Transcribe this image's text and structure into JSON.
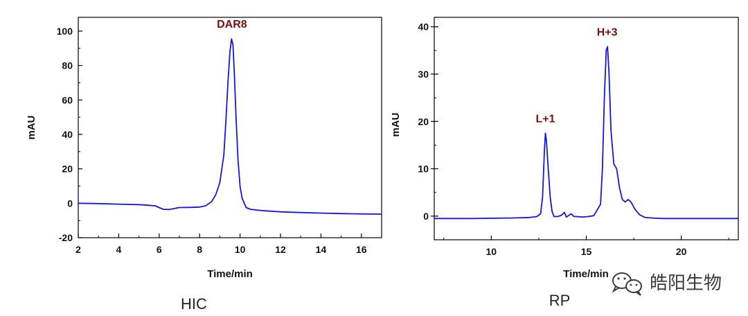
{
  "page": {
    "background": "#ffffff"
  },
  "watermark": {
    "text": "皓阳生物",
    "icon": "wechat-chat-icon",
    "color": "#3a3a3a"
  },
  "chart_data": [
    {
      "type": "line",
      "caption": "HIC",
      "title": "",
      "xlabel": "Time/min",
      "ylabel": "mAU",
      "xlim": [
        2,
        17
      ],
      "ylim": [
        -20,
        108
      ],
      "xticks": [
        2,
        4,
        6,
        8,
        10,
        12,
        14,
        16
      ],
      "yticks": [
        -20,
        0,
        20,
        40,
        60,
        80,
        100
      ],
      "grid": false,
      "line_color": "#1414e6",
      "annotations": [
        {
          "text": "DAR8",
          "x": 9.6,
          "y": 95.5,
          "color": "#7a1010"
        }
      ],
      "series": [
        {
          "name": "",
          "x": [
            2,
            3,
            4,
            5,
            5.5,
            5.8,
            6.0,
            6.2,
            6.5,
            7.0,
            7.5,
            8.0,
            8.3,
            8.6,
            8.8,
            9.0,
            9.2,
            9.3,
            9.4,
            9.5,
            9.58,
            9.65,
            9.72,
            9.8,
            9.9,
            10.0,
            10.1,
            10.3,
            10.5,
            11,
            12,
            13,
            14,
            15,
            16,
            17
          ],
          "y": [
            0,
            -0.2,
            -0.5,
            -0.8,
            -1.2,
            -1.5,
            -2.5,
            -3.5,
            -3.6,
            -2.5,
            -2.4,
            -2.2,
            -1.5,
            1,
            5,
            12,
            28,
            48,
            70,
            88,
            95.5,
            92,
            75,
            50,
            25,
            10,
            3,
            -2.5,
            -3.5,
            -4.2,
            -5,
            -5.4,
            -5.7,
            -6,
            -6.2,
            -6.3
          ]
        }
      ]
    },
    {
      "type": "line",
      "caption": "RP",
      "title": "",
      "xlabel": "Time/min",
      "ylabel": "mAU",
      "xlim": [
        7,
        23
      ],
      "ylim": [
        -5,
        42
      ],
      "xticks": [
        10,
        15,
        20
      ],
      "yticks": [
        0,
        10,
        20,
        30,
        40
      ],
      "grid": false,
      "line_color": "#1414e6",
      "annotations": [
        {
          "text": "L+1",
          "x": 12.85,
          "y": 17.5,
          "color": "#7a1010"
        },
        {
          "text": "H+3",
          "x": 16.1,
          "y": 35.8,
          "color": "#7a1010"
        }
      ],
      "series": [
        {
          "name": "",
          "x": [
            7,
            9,
            11,
            12,
            12.4,
            12.6,
            12.7,
            12.8,
            12.85,
            12.9,
            13.0,
            13.1,
            13.2,
            13.3,
            13.5,
            13.7,
            13.85,
            13.95,
            14.1,
            14.2,
            14.35,
            14.5,
            14.8,
            15.1,
            15.4,
            15.6,
            15.75,
            15.85,
            15.95,
            16.05,
            16.12,
            16.2,
            16.3,
            16.45,
            16.6,
            16.75,
            16.9,
            17.05,
            17.2,
            17.35,
            17.55,
            17.8,
            18.1,
            18.5,
            19,
            20,
            21,
            22,
            23
          ],
          "y": [
            -0.5,
            -0.5,
            -0.4,
            -0.3,
            -0.1,
            0.5,
            4,
            14,
            17.5,
            16,
            10,
            4,
            1,
            -0.1,
            -0.1,
            0.2,
            0.8,
            -0.2,
            0.2,
            0.5,
            -0.1,
            -0.1,
            -0.2,
            -0.1,
            0.1,
            1.5,
            2.5,
            10,
            25,
            35,
            35.8,
            30,
            18,
            11,
            10,
            6,
            3.5,
            3,
            3.5,
            3,
            1.5,
            0.3,
            -0.3,
            -0.4,
            -0.5,
            -0.5,
            -0.5,
            -0.5,
            -0.5
          ]
        }
      ]
    }
  ]
}
